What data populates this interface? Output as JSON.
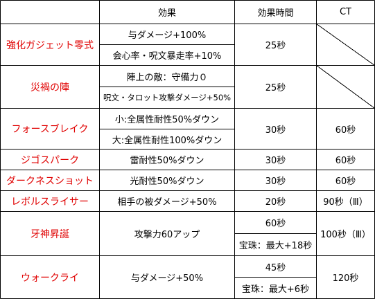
{
  "header": {
    "effect": "効果",
    "duration": "効果時間",
    "ct": "CT"
  },
  "rows": [
    {
      "name": "強化ガジェット零式",
      "effect1": "与ダメージ+100%",
      "effect2": "会心率・呪文暴走率+10%",
      "duration": "25秒",
      "ct": ""
    },
    {
      "name": "災禍の陣",
      "effect1": "陣上の敵：守備力０",
      "effect2": "呪文・タロット攻撃ダメージ+50%",
      "duration": "25秒",
      "ct": ""
    },
    {
      "name": "フォースブレイク",
      "effect1": "小:全属性耐性50%ダウン",
      "effect2": "大:全属性耐性100%ダウン",
      "duration": "30秒",
      "ct": "60秒"
    },
    {
      "name": "ジゴスパーク",
      "effect1": "雷耐性50%ダウン",
      "duration": "30秒",
      "ct": "60秒"
    },
    {
      "name": "ダークネスショット",
      "effect1": "光耐性50%ダウン",
      "duration": "30秒",
      "ct": "60秒"
    },
    {
      "name": "レボルスライサー",
      "effect1": "相手の被ダメージ+50%",
      "duration": "20秒",
      "ct": "90秒（Ⅲ）"
    },
    {
      "name": "牙神昇誕",
      "effect1": "攻撃力60アップ",
      "duration1": "60秒",
      "duration2": "宝珠：最大+18秒",
      "ct": "100秒（Ⅲ）"
    },
    {
      "name": "ウォークライ",
      "effect1": "与ダメージ+50%",
      "duration1": "45秒",
      "duration2": "宝珠：最大+6秒",
      "ct": "120秒"
    }
  ]
}
